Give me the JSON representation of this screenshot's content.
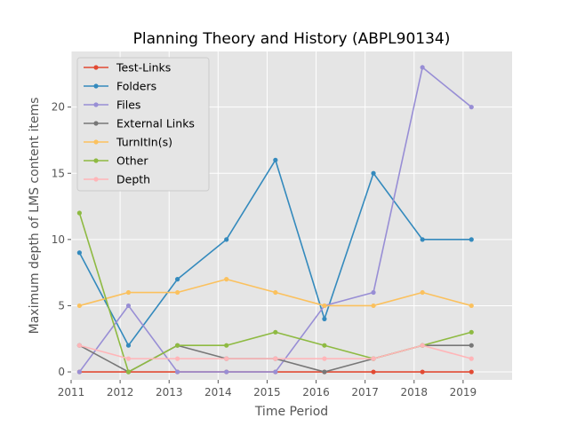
{
  "chart_data": {
    "type": "line",
    "title": "Planning Theory and History (ABPL90134)",
    "xlabel": "Time Period",
    "ylabel": "Maximum depth of LMS content items",
    "xlim": [
      2011.0,
      2020.0
    ],
    "ylim": [
      -0.6,
      24.2
    ],
    "x_ticks": [
      2011,
      2012,
      2013,
      2014,
      2015,
      2016,
      2017,
      2018,
      2019
    ],
    "x_tick_labels": [
      "2011",
      "2012",
      "2013",
      "2014",
      "2015",
      "2016",
      "2017",
      "2018",
      "2019"
    ],
    "y_ticks": [
      0,
      5,
      10,
      15,
      20
    ],
    "y_tick_labels": [
      "0",
      "5",
      "10",
      "15",
      "20"
    ],
    "grid": true,
    "legend_position": "upper-left",
    "x": [
      2011.17,
      2012.17,
      2013.17,
      2014.17,
      2015.17,
      2016.17,
      2017.17,
      2018.17,
      2019.17
    ],
    "series": [
      {
        "name": "Test-Links",
        "color": "#e24a33",
        "values": [
          0,
          0,
          0,
          0,
          0,
          0,
          0,
          0,
          0
        ]
      },
      {
        "name": "Folders",
        "color": "#348abd",
        "values": [
          9,
          2,
          7,
          10,
          16,
          4,
          15,
          10,
          10
        ]
      },
      {
        "name": "Files",
        "color": "#988ed5",
        "values": [
          0,
          5,
          0,
          0,
          0,
          5,
          6,
          23,
          20
        ]
      },
      {
        "name": "External Links",
        "color": "#777777",
        "values": [
          2,
          0,
          2,
          1,
          1,
          0,
          1,
          2,
          2
        ]
      },
      {
        "name": "TurnItIn(s)",
        "color": "#fbc15e",
        "values": [
          5,
          6,
          6,
          7,
          6,
          5,
          5,
          6,
          5
        ]
      },
      {
        "name": "Other",
        "color": "#8eba42",
        "values": [
          12,
          0,
          2,
          2,
          3,
          2,
          1,
          2,
          3
        ]
      },
      {
        "name": "Depth",
        "color": "#ffb5b8",
        "values": [
          2,
          1,
          1,
          1,
          1,
          1,
          1,
          2,
          1
        ]
      }
    ]
  }
}
